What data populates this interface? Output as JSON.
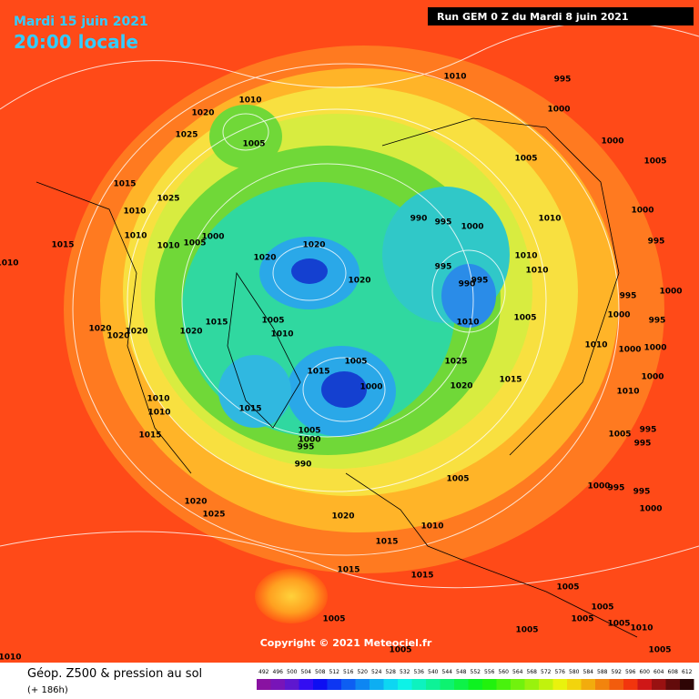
{
  "header": {
    "date": "Mardi 15 juin 2021",
    "time": "20:00 locale",
    "run": "Run GEM 0 Z du Mardi 8 juin 2021"
  },
  "isobar_labels": [
    "1010",
    "1020",
    "1025",
    "1005",
    "1010",
    "995",
    "1000",
    "1005",
    "1000",
    "1005",
    "1015",
    "1025",
    "1010",
    "990",
    "995",
    "1000",
    "1010",
    "1000",
    "1010",
    "1000",
    "1005",
    "1010",
    "1015",
    "1020",
    "995",
    "1010",
    "1020",
    "995",
    "995",
    "990",
    "1020",
    "1010",
    "1010",
    "995",
    "1000",
    "1005",
    "1010",
    "1005",
    "1000",
    "995",
    "1015",
    "1020",
    "1020",
    "1020",
    "1020",
    "1010",
    "1005",
    "1025",
    "1010",
    "1000",
    "1000",
    "1015",
    "1000",
    "1020",
    "1015",
    "1000",
    "1010",
    "1010",
    "1015",
    "1010",
    "1005",
    "1000",
    "995",
    "990",
    "1015",
    "1005",
    "995",
    "995",
    "1005",
    "1000",
    "995",
    "995",
    "1020",
    "1025",
    "1020",
    "1000",
    "1010",
    "1015",
    "1015",
    "1015",
    "1005",
    "1005",
    "1005",
    "1005",
    "1005",
    "1005",
    "1005",
    "1010",
    "1010",
    "1005"
  ],
  "copyright": "Copyright © 2021 Meteociel.fr",
  "legend": {
    "title": "Géop. Z500 & pression au sol",
    "subtitle": "(+ 186h)",
    "scale": [
      492,
      496,
      500,
      504,
      508,
      512,
      516,
      520,
      524,
      528,
      532,
      536,
      540,
      544,
      548,
      552,
      556,
      560,
      564,
      568,
      572,
      576,
      580,
      584,
      588,
      592,
      596,
      600,
      604,
      608,
      612
    ]
  }
}
